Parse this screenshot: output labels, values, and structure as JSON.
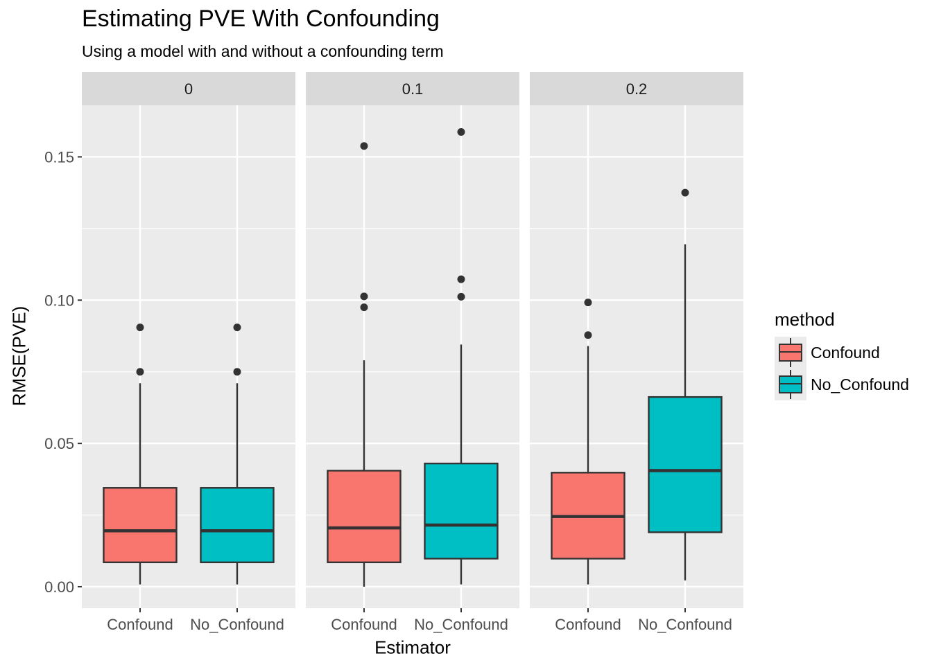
{
  "chart_data": {
    "type": "box",
    "title": "Estimating PVE With Confounding",
    "subtitle": "Using a model with and without a confounding term",
    "xlabel": "Estimator",
    "ylabel": "RMSE(PVE)",
    "ylim": [
      -0.0075,
      0.168
    ],
    "yticks": [
      "0.00",
      "0.05",
      "0.10",
      "0.15"
    ],
    "categories": [
      "Confound",
      "No_Confound"
    ],
    "legend": {
      "title": "method",
      "position": "right",
      "entries": [
        "Confound",
        "No_Confound"
      ]
    },
    "colors": {
      "Confound": "#f8766d",
      "No_Confound": "#00bfc4",
      "panel": "#ebebeb",
      "strip": "#d9d9d9",
      "grid": "#ffffff",
      "line": "#333333"
    },
    "facets": [
      {
        "label": "0",
        "boxes": [
          {
            "method": "Confound",
            "min": 0.0008,
            "q1": 0.0085,
            "median": 0.0195,
            "q3": 0.0345,
            "max": 0.071,
            "outliers": [
              0.075,
              0.0905
            ]
          },
          {
            "method": "No_Confound",
            "min": 0.0008,
            "q1": 0.0085,
            "median": 0.0195,
            "q3": 0.0345,
            "max": 0.071,
            "outliers": [
              0.075,
              0.0905
            ]
          }
        ]
      },
      {
        "label": "0.1",
        "boxes": [
          {
            "method": "Confound",
            "min": 0.0,
            "q1": 0.0085,
            "median": 0.0205,
            "q3": 0.0405,
            "max": 0.079,
            "outliers": [
              0.0975,
              0.1013,
              0.1538
            ]
          },
          {
            "method": "No_Confound",
            "min": 0.0008,
            "q1": 0.0098,
            "median": 0.0215,
            "q3": 0.043,
            "max": 0.0845,
            "outliers": [
              0.1012,
              0.1073,
              0.1587
            ]
          }
        ]
      },
      {
        "label": "0.2",
        "boxes": [
          {
            "method": "Confound",
            "min": 0.0008,
            "q1": 0.0098,
            "median": 0.0245,
            "q3": 0.0398,
            "max": 0.084,
            "outliers": [
              0.0878,
              0.0992
            ]
          },
          {
            "method": "No_Confound",
            "min": 0.0022,
            "q1": 0.019,
            "median": 0.0405,
            "q3": 0.0662,
            "max": 0.1195,
            "outliers": [
              0.1375
            ]
          }
        ]
      }
    ]
  }
}
